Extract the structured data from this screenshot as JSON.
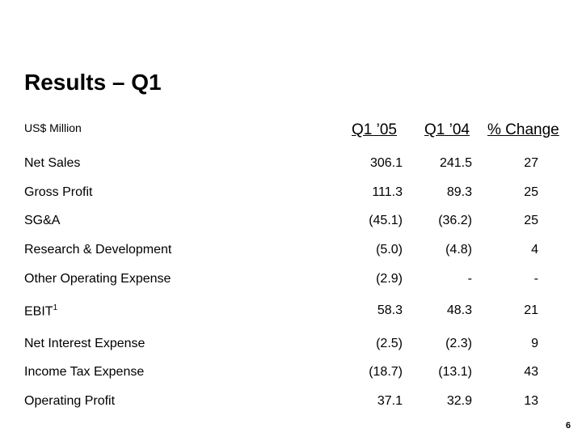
{
  "slide": {
    "title": "Results – Q1",
    "units": "US$ Million",
    "page_number": "6"
  },
  "columns": [
    "Q1 ’05",
    "Q1 ’04",
    "% Change"
  ],
  "rows": [
    {
      "label": "Net Sales",
      "sup": "",
      "q1_05": "306.1",
      "q1_04": "241.5",
      "pct": "27"
    },
    {
      "label": "Gross Profit",
      "sup": "",
      "q1_05": "111.3",
      "q1_04": "89.3",
      "pct": "25"
    },
    {
      "label": "SG&A",
      "sup": "",
      "q1_05": "(45.1)",
      "q1_04": "(36.2)",
      "pct": "25"
    },
    {
      "label": "Research & Development",
      "sup": "",
      "q1_05": "(5.0)",
      "q1_04": "(4.8)",
      "pct": "4"
    },
    {
      "label": "Other Operating Expense",
      "sup": "",
      "q1_05": "(2.9)",
      "q1_04": "-",
      "pct": "-"
    },
    {
      "label": "EBIT",
      "sup": "1",
      "q1_05": "58.3",
      "q1_04": "48.3",
      "pct": "21"
    },
    {
      "label": "Net Interest Expense",
      "sup": "",
      "q1_05": "(2.5)",
      "q1_04": "(2.3)",
      "pct": "9"
    },
    {
      "label": "Income Tax Expense",
      "sup": "",
      "q1_05": "(18.7)",
      "q1_04": "(13.1)",
      "pct": "43"
    },
    {
      "label": "Operating Profit",
      "sup": "",
      "q1_05": "37.1",
      "q1_04": "32.9",
      "pct": "13"
    }
  ]
}
